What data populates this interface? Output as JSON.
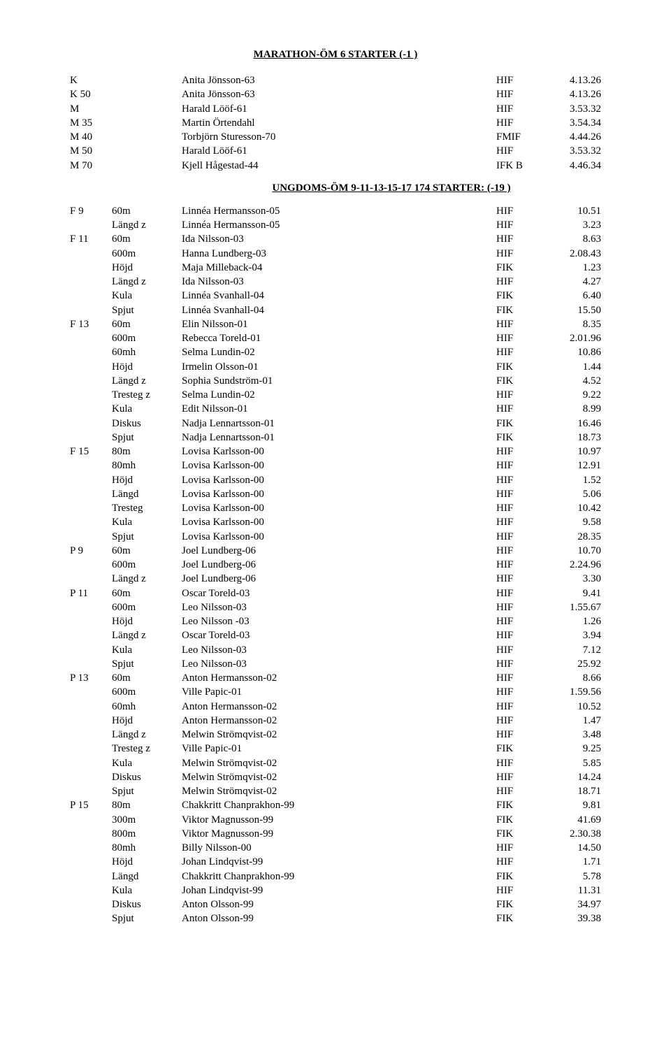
{
  "title": "MARATHON-ÖM 6 STARTER  (-1 )",
  "subtitle": "UNGDOMS-ÖM 9-11-13-15-17  174 STARTER: (-19 )",
  "marathon": [
    {
      "cat": "K",
      "evt": "",
      "name": "Anita Jönsson-63",
      "club": "HIF",
      "res": "4.13.26"
    },
    {
      "cat": "K 50",
      "evt": "",
      "name": "Anita Jönsson-63",
      "club": "HIF",
      "res": "4.13.26"
    },
    {
      "cat": "M",
      "evt": "",
      "name": "Harald Lööf-61",
      "club": "HIF",
      "res": "3.53.32"
    },
    {
      "cat": "M 35",
      "evt": "",
      "name": "Martin Örtendahl",
      "club": "HIF",
      "res": "3.54.34"
    },
    {
      "cat": "M 40",
      "evt": "",
      "name": "Torbjörn Sturesson-70",
      "club": "FMIF",
      "res": "4.44.26"
    },
    {
      "cat": "M 50",
      "evt": "",
      "name": "Harald Lööf-61",
      "club": "HIF",
      "res": "3.53.32"
    },
    {
      "cat": "M 70",
      "evt": "",
      "name": "Kjell Hågestad-44",
      "club": "IFK B",
      "res": "4.46.34"
    }
  ],
  "ungdoms": [
    {
      "cat": "F 9",
      "evt": "60m",
      "name": "Linnéa Hermansson-05",
      "club": "HIF",
      "res": "10.51"
    },
    {
      "cat": "",
      "evt": "Längd z",
      "name": "Linnéa Hermansson-05",
      "club": "HIF",
      "res": "3.23"
    },
    {
      "cat": "F 11",
      "evt": "60m",
      "name": "Ida Nilsson-03",
      "club": "HIF",
      "res": "8.63"
    },
    {
      "cat": "",
      "evt": "600m",
      "name": "Hanna Lundberg-03",
      "club": "HIF",
      "res": "2.08.43"
    },
    {
      "cat": "",
      "evt": "Höjd",
      "name": "Maja Milleback-04",
      "club": "FIK",
      "res": "1.23"
    },
    {
      "cat": "",
      "evt": "Längd z",
      "name": "Ida Nilsson-03",
      "club": "HIF",
      "res": "4.27"
    },
    {
      "cat": "",
      "evt": "Kula",
      "name": "Linnéa Svanhall-04",
      "club": "FIK",
      "res": "6.40"
    },
    {
      "cat": "",
      "evt": "Spjut",
      "name": "Linnéa Svanhall-04",
      "club": "FIK",
      "res": "15.50"
    },
    {
      "cat": "F 13",
      "evt": "60m",
      "name": "Elin Nilsson-01",
      "club": "HIF",
      "res": "8.35"
    },
    {
      "cat": "",
      "evt": "600m",
      "name": "Rebecca Toreld-01",
      "club": "HIF",
      "res": "2.01.96"
    },
    {
      "cat": "",
      "evt": "60mh",
      "name": "Selma Lundin-02",
      "club": "HIF",
      "res": "10.86"
    },
    {
      "cat": "",
      "evt": "Höjd",
      "name": "Irmelin Olsson-01",
      "club": "FIK",
      "res": "1.44"
    },
    {
      "cat": "",
      "evt": "Längd z",
      "name": "Sophia Sundström-01",
      "club": "FIK",
      "res": "4.52"
    },
    {
      "cat": "",
      "evt": "Tresteg z",
      "name": "Selma Lundin-02",
      "club": "HIF",
      "res": "9.22"
    },
    {
      "cat": "",
      "evt": "Kula",
      "name": "Edit Nilsson-01",
      "club": "HIF",
      "res": "8.99"
    },
    {
      "cat": "",
      "evt": "Diskus",
      "name": "Nadja Lennartsson-01",
      "club": "FIK",
      "res": "16.46"
    },
    {
      "cat": "",
      "evt": "Spjut",
      "name": "Nadja Lennartsson-01",
      "club": "FIK",
      "res": "18.73"
    },
    {
      "cat": "F 15",
      "evt": "80m",
      "name": "Lovisa Karlsson-00",
      "club": "HIF",
      "res": "10.97"
    },
    {
      "cat": "",
      "evt": "80mh",
      "name": "Lovisa Karlsson-00",
      "club": "HIF",
      "res": "12.91"
    },
    {
      "cat": "",
      "evt": "Höjd",
      "name": "Lovisa Karlsson-00",
      "club": "HIF",
      "res": "1.52"
    },
    {
      "cat": "",
      "evt": "Längd",
      "name": "Lovisa Karlsson-00",
      "club": "HIF",
      "res": "5.06"
    },
    {
      "cat": "",
      "evt": "Tresteg",
      "name": "Lovisa Karlsson-00",
      "club": "HIF",
      "res": "10.42"
    },
    {
      "cat": "",
      "evt": "Kula",
      "name": "Lovisa Karlsson-00",
      "club": "HIF",
      "res": "9.58"
    },
    {
      "cat": "",
      "evt": "Spjut",
      "name": "Lovisa Karlsson-00",
      "club": "HIF",
      "res": "28.35"
    },
    {
      "cat": "P 9",
      "evt": "60m",
      "name": "Joel Lundberg-06",
      "club": "HIF",
      "res": "10.70"
    },
    {
      "cat": "",
      "evt": "600m",
      "name": "Joel Lundberg-06",
      "club": "HIF",
      "res": "2.24.96"
    },
    {
      "cat": "",
      "evt": "Längd z",
      "name": "Joel Lundberg-06",
      "club": "HIF",
      "res": "3.30"
    },
    {
      "cat": "P 11",
      "evt": "60m",
      "name": "Oscar Toreld-03",
      "club": "HIF",
      "res": "9.41"
    },
    {
      "cat": "",
      "evt": "600m",
      "name": "Leo Nilsson-03",
      "club": "HIF",
      "res": "1.55.67"
    },
    {
      "cat": "",
      "evt": "Höjd",
      "name": "Leo Nilsson -03",
      "club": "HIF",
      "res": "1.26"
    },
    {
      "cat": "",
      "evt": "Längd z",
      "name": "Oscar Toreld-03",
      "club": "HIF",
      "res": "3.94"
    },
    {
      "cat": "",
      "evt": "Kula",
      "name": "Leo Nilsson-03",
      "club": "HIF",
      "res": "7.12"
    },
    {
      "cat": "",
      "evt": "Spjut",
      "name": "Leo Nilsson-03",
      "club": "HIF",
      "res": "25.92"
    },
    {
      "cat": "P 13",
      "evt": "60m",
      "name": "Anton Hermansson-02",
      "club": "HIF",
      "res": "8.66"
    },
    {
      "cat": "",
      "evt": "600m",
      "name": "Ville Papic-01",
      "club": "HIF",
      "res": "1.59.56"
    },
    {
      "cat": "",
      "evt": "60mh",
      "name": "Anton Hermansson-02",
      "club": "HIF",
      "res": "10.52"
    },
    {
      "cat": "",
      "evt": "Höjd",
      "name": "Anton Hermansson-02",
      "club": "HIF",
      "res": "1.47"
    },
    {
      "cat": "",
      "evt": "Längd z",
      "name": "Melwin Strömqvist-02",
      "club": "HIF",
      "res": "3.48"
    },
    {
      "cat": "",
      "evt": "Tresteg z",
      "name": "Ville Papic-01",
      "club": "FIK",
      "res": "9.25"
    },
    {
      "cat": "",
      "evt": "Kula",
      "name": "Melwin Strömqvist-02",
      "club": "HIF",
      "res": "5.85"
    },
    {
      "cat": "",
      "evt": "Diskus",
      "name": "Melwin Strömqvist-02",
      "club": "HIF",
      "res": "14.24"
    },
    {
      "cat": "",
      "evt": "Spjut",
      "name": "Melwin Strömqvist-02",
      "club": "HIF",
      "res": "18.71"
    },
    {
      "cat": "P 15",
      "evt": "80m",
      "name": "Chakkritt Chanprakhon-99",
      "club": "FIK",
      "res": "9.81"
    },
    {
      "cat": "",
      "evt": "300m",
      "name": "Viktor Magnusson-99",
      "club": "FIK",
      "res": "41.69"
    },
    {
      "cat": "",
      "evt": "800m",
      "name": "Viktor Magnusson-99",
      "club": "FIK",
      "res": "2.30.38"
    },
    {
      "cat": "",
      "evt": "80mh",
      "name": "Billy Nilsson-00",
      "club": "HIF",
      "res": "14.50"
    },
    {
      "cat": "",
      "evt": "Höjd",
      "name": "Johan Lindqvist-99",
      "club": "HIF",
      "res": "1.71"
    },
    {
      "cat": "",
      "evt": "Längd",
      "name": "Chakkritt Chanprakhon-99",
      "club": "FIK",
      "res": "5.78"
    },
    {
      "cat": "",
      "evt": "Kula",
      "name": "Johan Lindqvist-99",
      "club": "HIF",
      "res": "11.31"
    },
    {
      "cat": "",
      "evt": "Diskus",
      "name": "Anton Olsson-99",
      "club": "FIK",
      "res": "34.97"
    },
    {
      "cat": "",
      "evt": "Spjut",
      "name": "Anton Olsson-99",
      "club": "FIK",
      "res": "39.38"
    }
  ]
}
